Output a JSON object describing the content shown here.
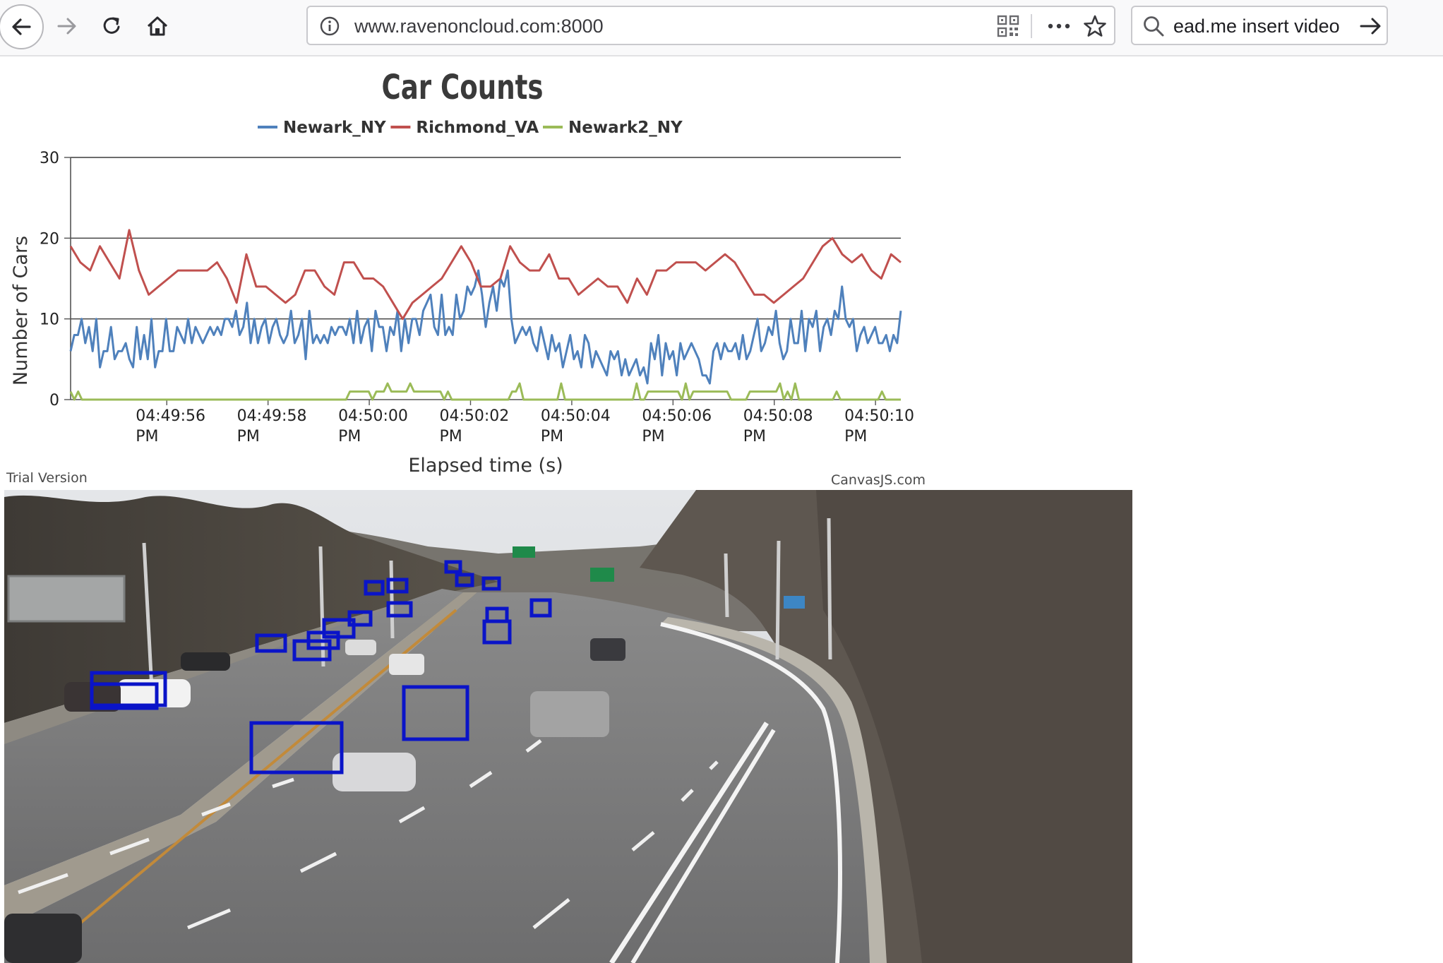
{
  "browser": {
    "url": "www.ravenoncloud.com:8000",
    "search_value": "ead.me insert video"
  },
  "chart_data": {
    "type": "line",
    "title": "Car Counts",
    "xlabel": "Elapsed time (s)",
    "ylabel": "Number of Cars",
    "ylim": [
      0,
      30
    ],
    "yticks": [
      0,
      10,
      20,
      30
    ],
    "grid": true,
    "legend_position": "top-center",
    "x_ticks": [
      {
        "time": "04:49:56",
        "ampm": "PM"
      },
      {
        "time": "04:49:58",
        "ampm": "PM"
      },
      {
        "time": "04:50:00",
        "ampm": "PM"
      },
      {
        "time": "04:50:02",
        "ampm": "PM"
      },
      {
        "time": "04:50:04",
        "ampm": "PM"
      },
      {
        "time": "04:50:06",
        "ampm": "PM"
      },
      {
        "time": "04:50:08",
        "ampm": "PM"
      },
      {
        "time": "04:50:10",
        "ampm": "PM"
      }
    ],
    "x_start_s": -1.9,
    "x_end_s": 14.5,
    "x_step_s": 0.125,
    "series": [
      {
        "name": "Newark_NY",
        "color": "#4f81bc",
        "values": [
          6,
          8,
          8,
          10,
          7,
          9,
          6,
          10,
          4,
          6,
          6,
          9,
          5,
          6,
          6,
          7,
          5,
          4,
          9,
          5,
          8,
          5,
          10,
          4,
          6,
          6,
          10,
          6,
          6,
          9,
          8,
          7,
          10,
          7,
          9,
          8,
          7,
          8,
          9,
          8,
          9,
          8,
          10,
          10,
          9,
          11,
          8,
          9,
          12,
          7,
          10,
          7,
          9,
          10,
          7,
          9,
          10,
          8,
          7,
          8,
          11,
          7,
          8,
          10,
          5,
          11,
          7,
          8,
          7,
          8,
          7,
          9,
          8,
          9,
          9,
          8,
          10,
          7,
          11,
          7,
          9,
          10,
          6,
          11,
          9,
          9,
          6,
          9,
          8,
          11,
          6,
          10,
          7,
          10,
          10,
          8,
          11,
          12,
          13,
          9,
          8,
          13,
          8,
          9,
          8,
          13,
          10,
          11,
          14,
          13,
          14,
          16,
          13,
          9,
          12,
          14,
          11,
          15,
          14,
          16,
          10,
          7,
          8,
          9,
          8,
          9,
          7,
          6,
          9,
          7,
          5,
          8,
          6,
          7,
          4,
          6,
          8,
          5,
          6,
          4,
          8,
          7,
          4,
          6,
          5,
          4,
          3,
          6,
          5,
          6,
          3,
          5,
          3,
          4,
          5,
          3,
          4,
          2,
          7,
          5,
          8,
          3,
          7,
          5,
          6,
          3,
          7,
          5,
          6,
          7,
          6,
          5,
          3,
          3,
          2,
          6,
          7,
          5,
          7,
          6,
          6,
          7,
          5,
          8,
          5,
          6,
          8,
          10,
          6,
          7,
          9,
          8,
          11,
          7,
          5,
          6,
          10,
          7,
          7,
          11,
          6,
          10,
          9,
          11,
          6,
          9,
          10,
          8,
          11,
          10,
          14,
          10,
          9,
          10,
          6,
          8,
          9,
          7,
          8,
          9,
          7,
          7,
          8,
          6,
          8,
          7,
          11
        ]
      },
      {
        "name": "Richmond_VA",
        "color": "#c0504e",
        "values": [
          19,
          17,
          16,
          19,
          17,
          15,
          21,
          16,
          13,
          14,
          15,
          16,
          16,
          16,
          16,
          17,
          15,
          12,
          18,
          14,
          14,
          13,
          12,
          13,
          16,
          16,
          14,
          13,
          17,
          17,
          15,
          15,
          14,
          12,
          10,
          12,
          13,
          14,
          15,
          17,
          19,
          17,
          14,
          14,
          15,
          19,
          17,
          16,
          16,
          18,
          15,
          15,
          13,
          14,
          15,
          14,
          14,
          12,
          15,
          13,
          16,
          16,
          17,
          17,
          17,
          16,
          17,
          18,
          17,
          15,
          13,
          13,
          12,
          13,
          14,
          15,
          17,
          19,
          20,
          18,
          17,
          18,
          16,
          15,
          18,
          17
        ]
      },
      {
        "name": "Newark2_NY",
        "color": "#9bbb58",
        "values": [
          1,
          0,
          1,
          0,
          0,
          0,
          0,
          0,
          0,
          0,
          0,
          0,
          0,
          0,
          0,
          0,
          0,
          0,
          0,
          0,
          0,
          0,
          0,
          0,
          0,
          0,
          0,
          0,
          0,
          0,
          0,
          0,
          0,
          0,
          0,
          0,
          0,
          0,
          0,
          0,
          0,
          0,
          0,
          0,
          0,
          0,
          0,
          0,
          0,
          0,
          0,
          0,
          0,
          0,
          0,
          0,
          0,
          0,
          0,
          0,
          0,
          0,
          0,
          0,
          0,
          0,
          0,
          0,
          0,
          0,
          0,
          0,
          0,
          0,
          1,
          1,
          1,
          1,
          1,
          1,
          0,
          1,
          1,
          1,
          2,
          1,
          1,
          1,
          1,
          1,
          2,
          1,
          1,
          1,
          1,
          1,
          1,
          1,
          1,
          0,
          1,
          0,
          0,
          0,
          0,
          0,
          0,
          0,
          0,
          0,
          0,
          0,
          0,
          0,
          0,
          0,
          0,
          1,
          1,
          2,
          0,
          0,
          0,
          0,
          0,
          0,
          0,
          0,
          0,
          0,
          2,
          0,
          0,
          0,
          0,
          0,
          0,
          0,
          0,
          0,
          0,
          0,
          0,
          0,
          0,
          0,
          0,
          0,
          0,
          0,
          2,
          0,
          0,
          1,
          1,
          1,
          1,
          1,
          1,
          1,
          1,
          1,
          0,
          2,
          0,
          1,
          1,
          1,
          1,
          1,
          1,
          1,
          1,
          1,
          1,
          0,
          0,
          0,
          0,
          0,
          1,
          1,
          1,
          1,
          1,
          1,
          1,
          1,
          2,
          0,
          1,
          0,
          2,
          0,
          0,
          0,
          0,
          0,
          0,
          0,
          0,
          0,
          0,
          1,
          0,
          0,
          0,
          0,
          0,
          0,
          0,
          0,
          0,
          0,
          0,
          1,
          0,
          0,
          0,
          0,
          0
        ]
      }
    ]
  },
  "footer": {
    "trial": "Trial Version",
    "credit": "CanvasJS.com"
  },
  "camera": {
    "scene": "highway-traffic-camera",
    "box_color": "#0a14c8"
  }
}
